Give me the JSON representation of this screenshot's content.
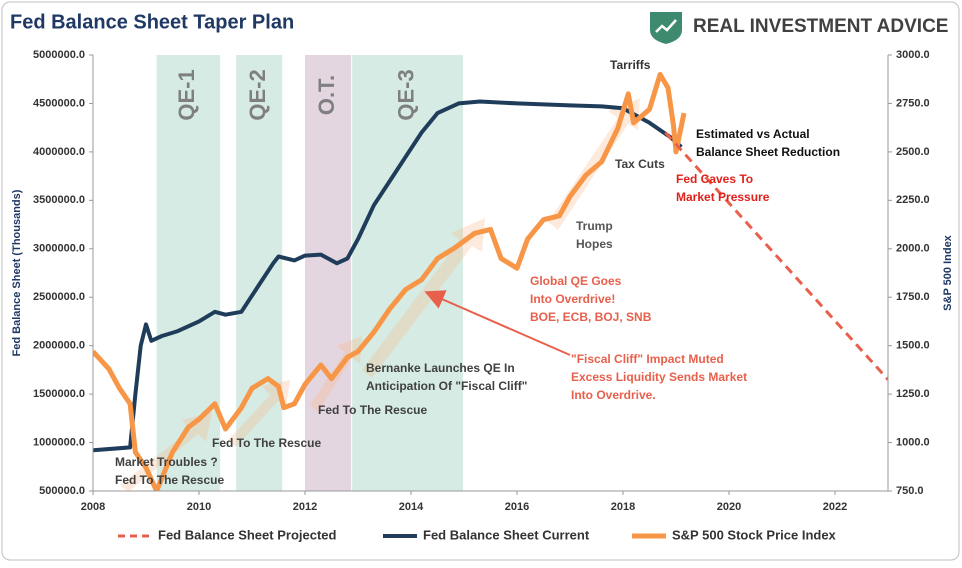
{
  "chart_data": {
    "type": "line",
    "title": "Fed Balance Sheet Taper Plan",
    "brand": "REAL INVESTMENT ADVICE",
    "y_label": "Fed Balance Sheet (Thousands)",
    "y2_label": "S&P 500 Index",
    "xlim": [
      2008,
      2023
    ],
    "xticks": [
      2008,
      2010,
      2012,
      2014,
      2016,
      2018,
      2020,
      2022
    ],
    "ylim": [
      500000,
      5000000
    ],
    "yticks": [
      {
        "value": 500000,
        "label": "500000.0"
      },
      {
        "value": 1000000,
        "label": "1000000.0"
      },
      {
        "value": 1500000,
        "label": "1500000.0"
      },
      {
        "value": 2000000,
        "label": "2000000.0"
      },
      {
        "value": 2500000,
        "label": "2500000.0"
      },
      {
        "value": 3000000,
        "label": "3000000.0"
      },
      {
        "value": 3500000,
        "label": "3500000.0"
      },
      {
        "value": 4000000,
        "label": "4000000.0"
      },
      {
        "value": 4500000,
        "label": "4500000.0"
      },
      {
        "value": 5000000,
        "label": "5000000.0"
      }
    ],
    "y2lim": [
      750,
      3000
    ],
    "y2ticks": [
      {
        "value": 750,
        "label": "750.0"
      },
      {
        "value": 1000,
        "label": "1000.0"
      },
      {
        "value": 1250,
        "label": "1250.0"
      },
      {
        "value": 1500,
        "label": "1500.0"
      },
      {
        "value": 1750,
        "label": "1750.0"
      },
      {
        "value": 2000,
        "label": "2000.0"
      },
      {
        "value": 2250,
        "label": "2250.0"
      },
      {
        "value": 2500,
        "label": "2500.0"
      },
      {
        "value": 2750,
        "label": "2750.0"
      },
      {
        "value": 3000,
        "label": "3000.0"
      }
    ],
    "grid": false,
    "shaded_regions": [
      {
        "label": "QE-1",
        "start": 2009.2,
        "end": 2010.4,
        "color": "#d6ebe3"
      },
      {
        "label": "QE-2",
        "start": 2010.7,
        "end": 2011.57,
        "color": "#d6ebe3"
      },
      {
        "label": "O.T.",
        "start": 2012.0,
        "end": 2012.87,
        "color": "#e4d6e0"
      },
      {
        "label": "QE-3",
        "start": 2012.89,
        "end": 2014.98,
        "color": "#d6ebe3"
      }
    ],
    "series": [
      {
        "name": "Fed Balance Sheet Projected",
        "color": "#e8604c",
        "dashed": true,
        "x": [
          2018.8,
          2023
        ],
        "values": [
          4200000,
          1650000
        ]
      },
      {
        "name": "Fed Balance Sheet Current",
        "color": "#1f3d5a",
        "x": [
          2008,
          2008.7,
          2008.8,
          2008.9,
          2009.0,
          2009.1,
          2009.3,
          2009.6,
          2010.0,
          2010.3,
          2010.5,
          2010.8,
          2011.1,
          2011.4,
          2011.5,
          2011.8,
          2012.0,
          2012.3,
          2012.6,
          2012.8,
          2013.0,
          2013.3,
          2013.6,
          2013.9,
          2014.2,
          2014.5,
          2014.9,
          2015.3,
          2016.0,
          2017.0,
          2017.6,
          2018.0,
          2018.5,
          2018.9,
          2019.1
        ],
        "values": [
          920000,
          950000,
          1500000,
          2000000,
          2220000,
          2050000,
          2100000,
          2150000,
          2250000,
          2350000,
          2320000,
          2350000,
          2600000,
          2850000,
          2920000,
          2880000,
          2930000,
          2940000,
          2850000,
          2900000,
          3100000,
          3450000,
          3700000,
          3950000,
          4200000,
          4400000,
          4500000,
          4520000,
          4500000,
          4480000,
          4470000,
          4450000,
          4300000,
          4150000,
          4050000
        ]
      },
      {
        "name": "S&P 500 Stock Price Index",
        "color": "#f79646",
        "axis": "y2",
        "x": [
          2008.0,
          2008.3,
          2008.5,
          2008.7,
          2008.8,
          2009.0,
          2009.2,
          2009.5,
          2009.8,
          2010.0,
          2010.3,
          2010.5,
          2010.8,
          2011.0,
          2011.3,
          2011.5,
          2011.6,
          2011.8,
          2012.0,
          2012.3,
          2012.5,
          2012.8,
          2013.0,
          2013.3,
          2013.6,
          2013.9,
          2014.2,
          2014.5,
          2014.8,
          2015.2,
          2015.5,
          2015.7,
          2016.0,
          2016.2,
          2016.5,
          2016.8,
          2017.0,
          2017.3,
          2017.6,
          2017.9,
          2018.1,
          2018.2,
          2018.5,
          2018.7,
          2018.85,
          2018.95,
          2019.0,
          2019.15
        ],
        "values": [
          1470,
          1380,
          1280,
          1200,
          950,
          870,
          750,
          950,
          1080,
          1120,
          1200,
          1070,
          1180,
          1280,
          1330,
          1290,
          1180,
          1200,
          1300,
          1400,
          1330,
          1440,
          1470,
          1570,
          1690,
          1790,
          1840,
          1950,
          2000,
          2080,
          2100,
          1950,
          1900,
          2050,
          2150,
          2170,
          2270,
          2380,
          2450,
          2620,
          2800,
          2650,
          2720,
          2900,
          2830,
          2640,
          2500,
          2700
        ]
      }
    ],
    "annotations": [
      {
        "lines": [
          "Tarriffs"
        ],
        "color": "#333333"
      },
      {
        "lines": [
          "Estimated vs Actual",
          "Balance Sheet Reduction"
        ],
        "color": "#111111"
      },
      {
        "lines": [
          "Tax Cuts"
        ],
        "color": "#404040"
      },
      {
        "lines": [
          "Fed Caves To",
          "Market Pressure"
        ],
        "color": "#e0201b"
      },
      {
        "lines": [
          "Trump",
          "Hopes"
        ],
        "color": "#555555"
      },
      {
        "lines": [
          "Global QE Goes",
          "Into Overdrive!",
          "BOE, ECB, BOJ, SNB"
        ],
        "color": "#e8604c"
      },
      {
        "lines": [
          "\"Fiscal Cliff\" Impact Muted",
          "Excess Liquidity Sends Market",
          "Into Overdrive."
        ],
        "color": "#e8604c"
      },
      {
        "lines": [
          "Bernanke Launches QE In",
          "Anticipation Of \"Fiscal Cliff\""
        ],
        "color": "#404040"
      },
      {
        "lines": [
          "Fed To The Rescue"
        ],
        "color": "#404040"
      },
      {
        "lines": [
          "Fed To The Rescue"
        ],
        "color": "#404040"
      },
      {
        "lines": [
          "Market Troubles ?",
          "Fed To The Rescue"
        ],
        "color": "#404040"
      }
    ]
  }
}
